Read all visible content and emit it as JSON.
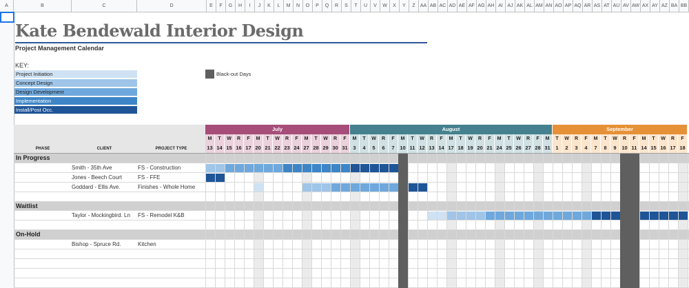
{
  "sheet": {
    "column_headers": [
      "A",
      "B",
      "C",
      "D",
      "E",
      "F",
      "G",
      "H",
      "I",
      "J",
      "K",
      "L",
      "M",
      "N",
      "O",
      "P",
      "Q",
      "R",
      "S",
      "T",
      "U",
      "V",
      "W",
      "X",
      "Y",
      "Z",
      "AA",
      "AB",
      "AC",
      "AD",
      "AE",
      "AF",
      "AG",
      "AH",
      "AI",
      "AJ",
      "AK",
      "AL",
      "AM",
      "AN",
      "AO",
      "AP",
      "AQ",
      "AR",
      "AS",
      "AT",
      "AU",
      "AV",
      "AW",
      "AX",
      "AY",
      "AZ",
      "BA",
      "BB"
    ],
    "title": "Kate Bendewald Interior Design",
    "subtitle": "Project Management Calendar"
  },
  "key": {
    "label": "KEY:",
    "items": [
      {
        "label": "Project Initiation",
        "color": "#cfe2f3",
        "text_color": "#222222"
      },
      {
        "label": "Concept Design",
        "color": "#9fc5e8",
        "text_color": "#222222"
      },
      {
        "label": "Design Development",
        "color": "#6fa8dc",
        "text_color": "#222222"
      },
      {
        "label": "Implementation",
        "color": "#3d85c6",
        "text_color": "#ffffff"
      },
      {
        "label": "Install/Post Occ.",
        "color": "#1f5597",
        "text_color": "#ffffff"
      }
    ],
    "blackout_label": "Black-out Days",
    "blackout_color": "#5f5f5f"
  },
  "calendar": {
    "column_labels": {
      "phase": "PHASE",
      "client": "CLIENT",
      "project_type": "PROJECT TYPE"
    },
    "months": [
      {
        "name": "July",
        "color": "#a64d79",
        "light": "#ead1dc",
        "days": [
          "13",
          "14",
          "15",
          "16",
          "17",
          "20",
          "21",
          "22",
          "23",
          "24",
          "27",
          "28",
          "29",
          "30",
          "31"
        ],
        "weekdays": [
          "M",
          "T",
          "W",
          "R",
          "F",
          "M",
          "T",
          "W",
          "R",
          "F",
          "M",
          "T",
          "W",
          "R",
          "F"
        ]
      },
      {
        "name": "August",
        "color": "#45818e",
        "light": "#d0e0e3",
        "days": [
          "3",
          "4",
          "5",
          "6",
          "7",
          "10",
          "11",
          "12",
          "13",
          "14",
          "17",
          "18",
          "19",
          "20",
          "21",
          "24",
          "25",
          "26",
          "27",
          "28",
          "31"
        ],
        "weekdays": [
          "M",
          "T",
          "W",
          "R",
          "F",
          "M",
          "T",
          "W",
          "R",
          "F",
          "M",
          "T",
          "W",
          "R",
          "F",
          "M",
          "T",
          "W",
          "R",
          "F",
          "M"
        ]
      },
      {
        "name": "September",
        "color": "#e69138",
        "light": "#fce5cd",
        "days": [
          "1",
          "2",
          "3",
          "4",
          "7",
          "8",
          "9",
          "10",
          "11",
          "14",
          "15",
          "16",
          "17",
          "18"
        ],
        "weekdays": [
          "T",
          "W",
          "R",
          "F",
          "M",
          "T",
          "W",
          "R",
          "F",
          "M",
          "T",
          "W",
          "R",
          "F"
        ]
      }
    ],
    "blackout_day_indices": [
      20,
      43,
      44
    ],
    "shaded_day_indices": [
      5,
      10,
      15,
      20,
      25,
      30,
      34,
      39,
      44,
      49
    ],
    "sections": [
      {
        "label": "In Progress",
        "rows": [
          {
            "client": "Smith - 35th Ave",
            "type": "FS - Construction",
            "bars": [
              {
                "from": 0,
                "to": 1,
                "color": "#9fc5e8"
              },
              {
                "from": 2,
                "to": 7,
                "color": "#6fa8dc"
              },
              {
                "from": 8,
                "to": 14,
                "color": "#3d85c6"
              },
              {
                "from": 15,
                "to": 19,
                "color": "#1f5597"
              }
            ]
          },
          {
            "client": "Jones - Beech Court",
            "type": "FS - FFE",
            "bars": [
              {
                "from": 0,
                "to": 1,
                "color": "#1f5597"
              }
            ]
          },
          {
            "client": "Goddard - Ellis Ave.",
            "type": "Finishes - Whole Home",
            "bars": [
              {
                "from": 5,
                "to": 5,
                "color": "#cfe2f3"
              },
              {
                "from": 10,
                "to": 12,
                "color": "#9fc5e8"
              },
              {
                "from": 13,
                "to": 19,
                "color": "#6fa8dc"
              },
              {
                "from": 21,
                "to": 22,
                "color": "#1f5597"
              }
            ]
          }
        ]
      },
      {
        "label": "Waitlist",
        "rows": [
          {
            "client": "Taylor - Mockingbird. Ln",
            "type": "FS - Remodel K&B",
            "bars": [
              {
                "from": 23,
                "to": 24,
                "color": "#cfe2f3"
              },
              {
                "from": 25,
                "to": 28,
                "color": "#9fc5e8"
              },
              {
                "from": 29,
                "to": 39,
                "color": "#6fa8dc"
              },
              {
                "from": 40,
                "to": 42,
                "color": "#1f5597"
              },
              {
                "from": 45,
                "to": 49,
                "color": "#1f5597"
              }
            ]
          }
        ]
      },
      {
        "label": "On-Hold",
        "rows": [
          {
            "client": "Bishop - Spruce Rd.",
            "type": "Kitchen",
            "bars": []
          }
        ]
      }
    ]
  }
}
